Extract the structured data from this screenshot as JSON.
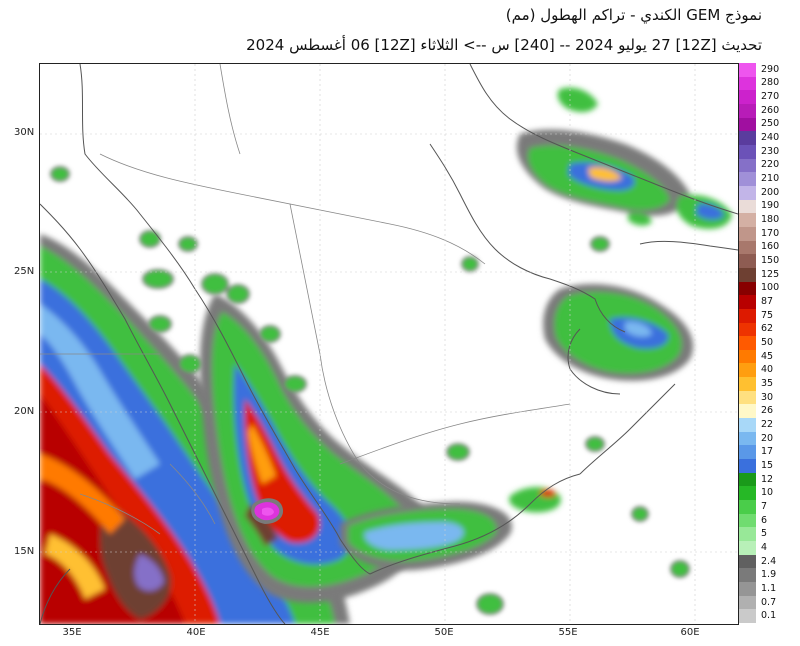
{
  "header": {
    "title_line1": "نموذج GEM الكندي  -  تراكم الهطول (مم)",
    "title_line2": "تحديث [12Z] 27 يوليو 2024 -- [240] س --> الثلاثاء [12Z] 06 أغسطس 2024"
  },
  "axes": {
    "lat_labels": [
      "30N",
      "25N",
      "20N",
      "15N"
    ],
    "lon_labels": [
      "35E",
      "40E",
      "45E",
      "50E",
      "55E",
      "60E"
    ]
  },
  "legend": {
    "levels": [
      "290",
      "280",
      "270",
      "260",
      "250",
      "240",
      "230",
      "220",
      "210",
      "200",
      "190",
      "180",
      "170",
      "160",
      "150",
      "125",
      "100",
      "87",
      "75",
      "62",
      "50",
      "45",
      "40",
      "35",
      "30",
      "26",
      "22",
      "20",
      "17",
      "15",
      "12",
      "10",
      "7",
      "6",
      "5",
      "4",
      "2.4",
      "1.9",
      "1.1",
      "0.7",
      "0.1"
    ],
    "colors": [
      "#ee55ee",
      "#dd33dd",
      "#cc22cc",
      "#b81cb8",
      "#a00fa0",
      "#5a3c9e",
      "#6b52b8",
      "#8570c8",
      "#a090d8",
      "#c2b5e8",
      "#eadcd8",
      "#d4b0a4",
      "#c0968a",
      "#a8786c",
      "#8e5c52",
      "#6e4032",
      "#880000",
      "#b80000",
      "#dd1a00",
      "#ee3300",
      "#ff5a00",
      "#ff7a00",
      "#ff9e10",
      "#ffc030",
      "#ffe080",
      "#fff8c8",
      "#a8d8f8",
      "#7ab8f0",
      "#5a98e8",
      "#3a70dd",
      "#1a9a1a",
      "#26b826",
      "#4acd4a",
      "#70dc70",
      "#98e898",
      "#b8f0b8",
      "#606060",
      "#7a7a7a",
      "#959595",
      "#b0b0b0",
      "#cacaca"
    ]
  }
}
